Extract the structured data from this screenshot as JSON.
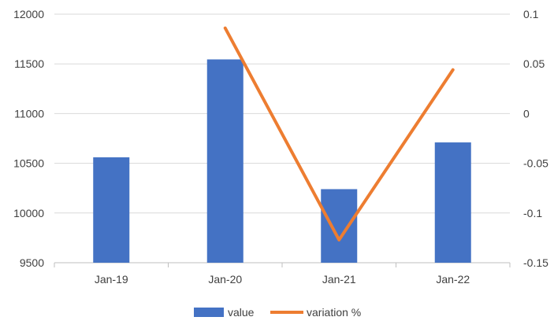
{
  "chart_data": {
    "type": "bar",
    "categories": [
      "Jan-19",
      "Jan-20",
      "Jan-21",
      "Jan-22"
    ],
    "series": [
      {
        "name": "value",
        "type": "bar",
        "axis": "left",
        "color": "#4472C4",
        "values": [
          10560,
          11545,
          10240,
          10710
        ]
      },
      {
        "name": "variation %",
        "type": "line",
        "axis": "right",
        "color": "#ED7D31",
        "values": [
          null,
          0.086,
          -0.127,
          0.044
        ]
      }
    ],
    "y_left": {
      "min": 9500,
      "max": 12000,
      "ticks": [
        "12000",
        "11500",
        "11000",
        "10500",
        "10000",
        "9500"
      ],
      "tick_values": [
        12000,
        11500,
        11000,
        10500,
        10000,
        9500
      ]
    },
    "y_right": {
      "min": -0.15,
      "max": 0.1,
      "ticks": [
        "0.1",
        "0.05",
        "0",
        "-0.05",
        "-0.1",
        "-0.15"
      ],
      "tick_values": [
        0.1,
        0.05,
        0,
        -0.05,
        -0.1,
        -0.15
      ]
    },
    "grid": true,
    "legend_position": "bottom",
    "legend": [
      "value",
      "variation %"
    ]
  }
}
